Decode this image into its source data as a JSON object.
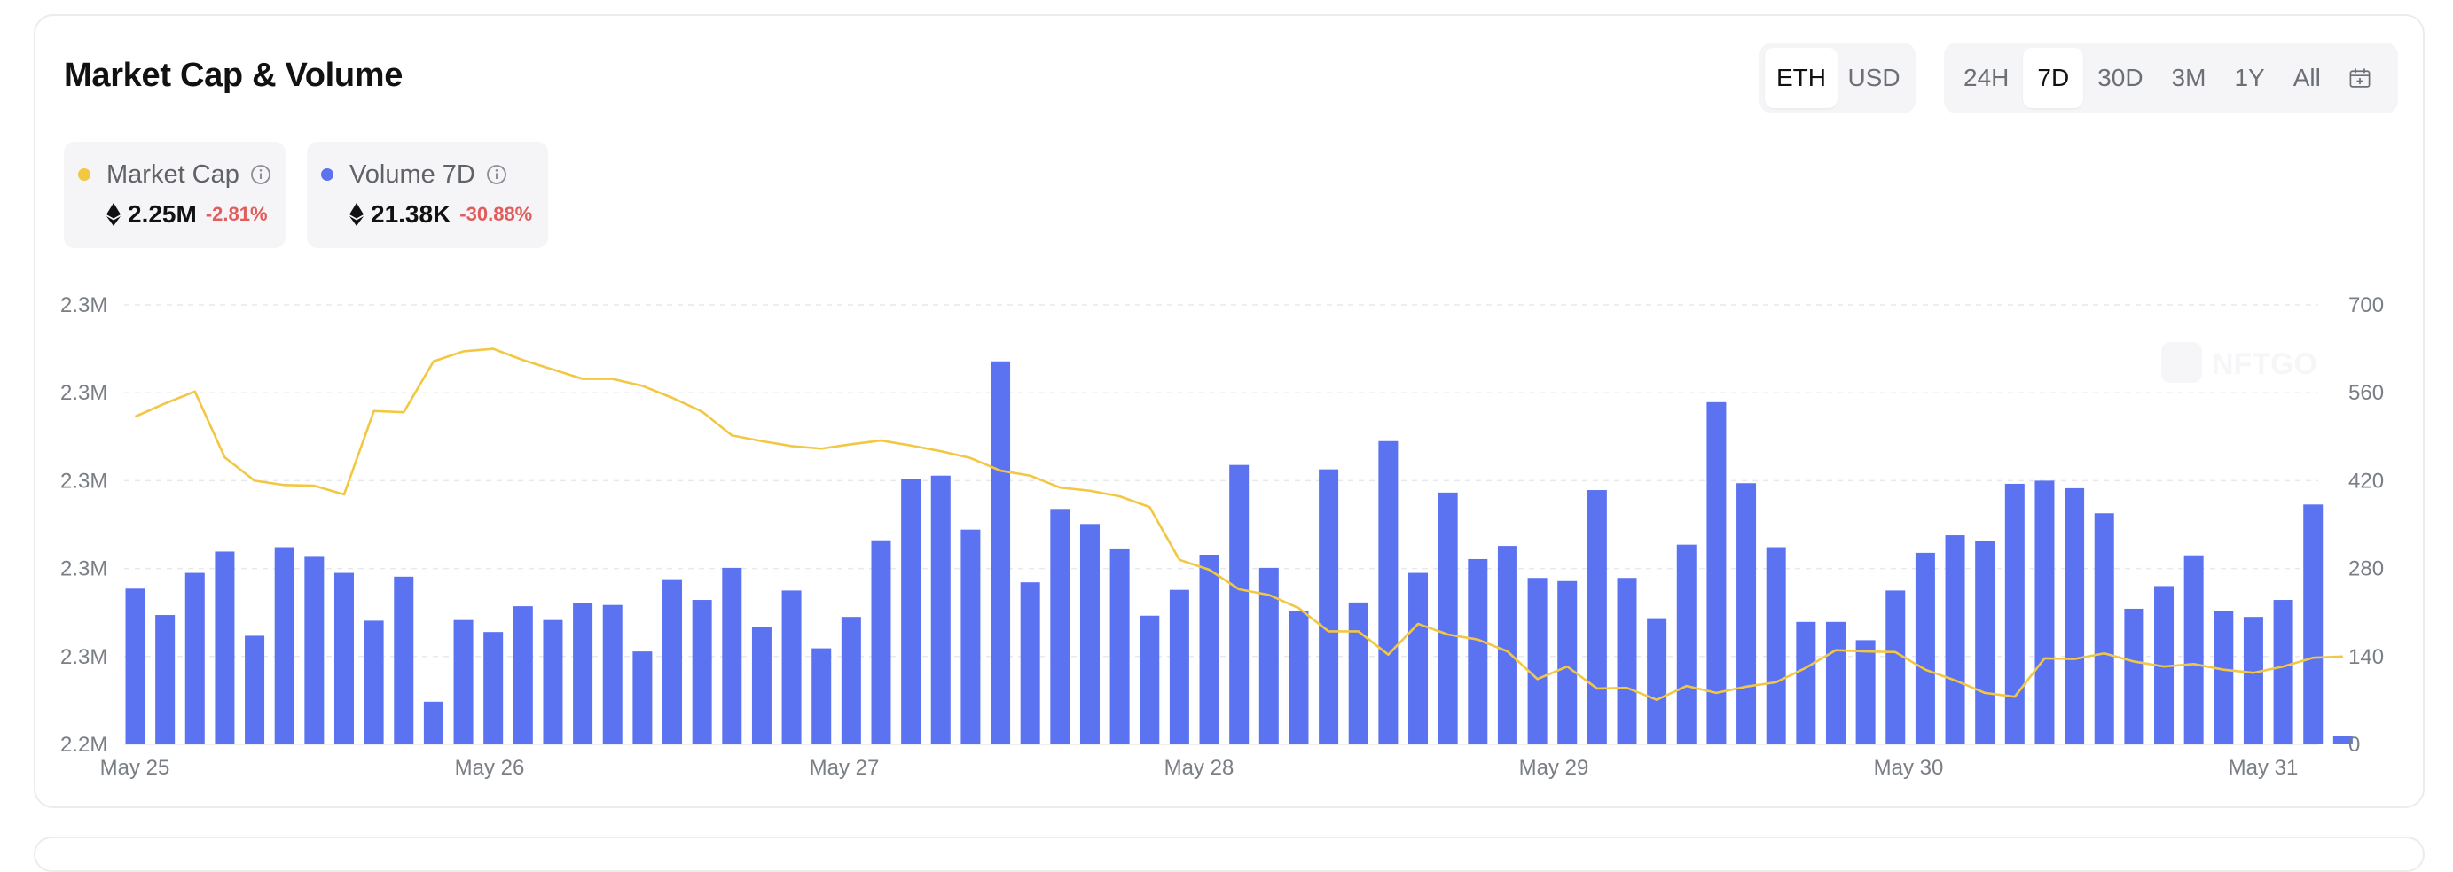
{
  "header": {
    "title": "Market Cap & Volume",
    "currency_options": [
      "ETH",
      "USD"
    ],
    "currency_selected": "ETH",
    "range_options": [
      "24H",
      "7D",
      "30D",
      "3M",
      "1Y",
      "All"
    ],
    "range_selected": "7D",
    "calendar_icon": "calendar-plus-icon"
  },
  "legend": {
    "market_cap": {
      "label": "Market Cap",
      "value": "2.25M",
      "change": "-2.81%",
      "icon": "eth-icon",
      "color": "#f2c744"
    },
    "volume": {
      "label": "Volume 7D",
      "value": "21.38K",
      "change": "-30.88%",
      "icon": "eth-icon",
      "color": "#5b73f1"
    }
  },
  "watermark": "NFTGO",
  "colors": {
    "bar": "#5b73f1",
    "line": "#f2c744",
    "negative": "#e25c5c"
  },
  "chart_data": {
    "type": "bar",
    "title": "Market Cap & Volume",
    "x_tick_labels": [
      "May 25",
      "May 26",
      "May 27",
      "May 28",
      "May 29",
      "May 30",
      "May 31"
    ],
    "left_axis_tick_labels": [
      "2.2M",
      "2.3M",
      "2.3M",
      "2.3M",
      "2.3M",
      "2.3M"
    ],
    "right_axis_tick_labels": [
      "0",
      "140",
      "280",
      "420",
      "560",
      "700"
    ],
    "right_axis_range": [
      0,
      700
    ],
    "grid": "horizontal dashed",
    "series": [
      {
        "name": "Volume 7D",
        "type": "bar",
        "axis": "right",
        "values": [
          248,
          206,
          273,
          307,
          173,
          314,
          300,
          273,
          197,
          267,
          68,
          198,
          179,
          220,
          198,
          225,
          222,
          148,
          263,
          230,
          281,
          187,
          245,
          153,
          203,
          325,
          422,
          428,
          342,
          610,
          258,
          375,
          351,
          312,
          205,
          246,
          302,
          445,
          281,
          213,
          438,
          226,
          483,
          273,
          401,
          295,
          316,
          265,
          260,
          405,
          265,
          201,
          318,
          545,
          416,
          314,
          195,
          195,
          166,
          245,
          305,
          333,
          324,
          415,
          420,
          408,
          368,
          216,
          252,
          301,
          213,
          203,
          230,
          382,
          14
        ]
      },
      {
        "name": "Market Cap",
        "type": "line",
        "axis": "left",
        "values": [
          522,
          543,
          562,
          457,
          420,
          413,
          412,
          398,
          531,
          529,
          610,
          626,
          630,
          612,
          597,
          582,
          582,
          571,
          552,
          530,
          492,
          483,
          475,
          471,
          478,
          484,
          476,
          467,
          456,
          436,
          428,
          409,
          404,
          395,
          378,
          294,
          278,
          247,
          238,
          217,
          180,
          180,
          143,
          192,
          175,
          167,
          148,
          104,
          124,
          89,
          90,
          71,
          93,
          82,
          92,
          99,
          122,
          150,
          148,
          147,
          119,
          102,
          82,
          76,
          137,
          136,
          145,
          132,
          124,
          128,
          119,
          114,
          124,
          138,
          140
        ]
      }
    ]
  }
}
